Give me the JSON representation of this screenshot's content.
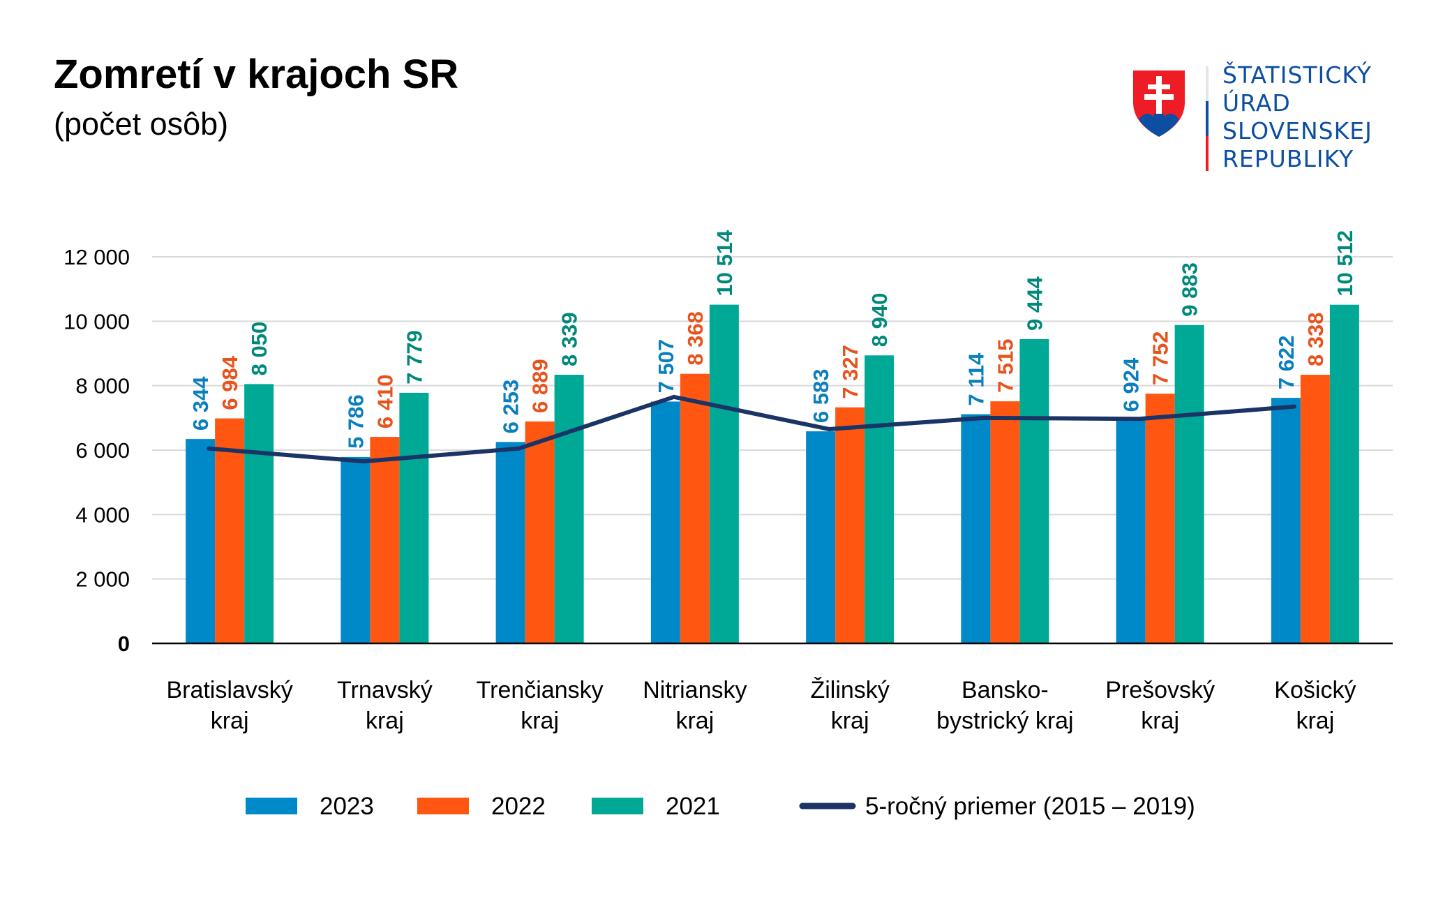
{
  "header": {
    "title": "Zomretí v krajoch SR",
    "subtitle": "(počet osôb)"
  },
  "logo": {
    "lines": [
      "ŠTATISTICKÝ",
      "ÚRAD",
      "SLOVENSKEJ",
      "REPUBLIKY"
    ],
    "color": "#0b4ea2"
  },
  "chart_data": {
    "type": "bar",
    "categories": [
      [
        "Bratislavský",
        "kraj"
      ],
      [
        "Trnavský",
        "kraj"
      ],
      [
        "Trenčiansky",
        "kraj"
      ],
      [
        "Nitriansky",
        "kraj"
      ],
      [
        "Žilinský",
        "kraj"
      ],
      [
        "Bansko-",
        "bystrický kraj"
      ],
      [
        "Prešovský",
        "kraj"
      ],
      [
        "Košický",
        "kraj"
      ]
    ],
    "series": [
      {
        "name": "2023",
        "type": "bar",
        "color": "#0089c9",
        "values": [
          6344,
          5786,
          6253,
          7507,
          6583,
          7114,
          6924,
          7622
        ],
        "labels": [
          "6 344",
          "5 786",
          "6 253",
          "7 507",
          "6 583",
          "7 114",
          "6 924",
          "7 622"
        ]
      },
      {
        "name": "2022",
        "type": "bar",
        "color": "#ff5711",
        "values": [
          6984,
          6410,
          6889,
          8368,
          7327,
          7515,
          7752,
          8338
        ],
        "labels": [
          "6 984",
          "6 410",
          "6 889",
          "8 368",
          "7 327",
          "7 515",
          "7 752",
          "8 338"
        ]
      },
      {
        "name": "2021",
        "type": "bar",
        "color": "#00a896",
        "values": [
          8050,
          7779,
          8339,
          10514,
          8940,
          9444,
          9883,
          10512
        ],
        "labels": [
          "8 050",
          "7 779",
          "8 339",
          "10 514",
          "8 940",
          "9 444",
          "9 883",
          "10 512"
        ]
      },
      {
        "name": "5-ročný priemer (2015 – 2019)",
        "type": "line",
        "color": "#1b3466",
        "values": [
          6050,
          5650,
          6050,
          7650,
          6650,
          7000,
          6970,
          7350
        ]
      }
    ],
    "yticks": [
      "0",
      "2 000",
      "4 000",
      "6 000",
      "8 000",
      "10 000",
      "12 000"
    ],
    "ylim": [
      0,
      12000
    ],
    "grid": true,
    "legend_position": "bottom",
    "label_colors": {
      "2023": "#0a7fbd",
      "2022": "#e8521c",
      "2021": "#00897a"
    }
  }
}
